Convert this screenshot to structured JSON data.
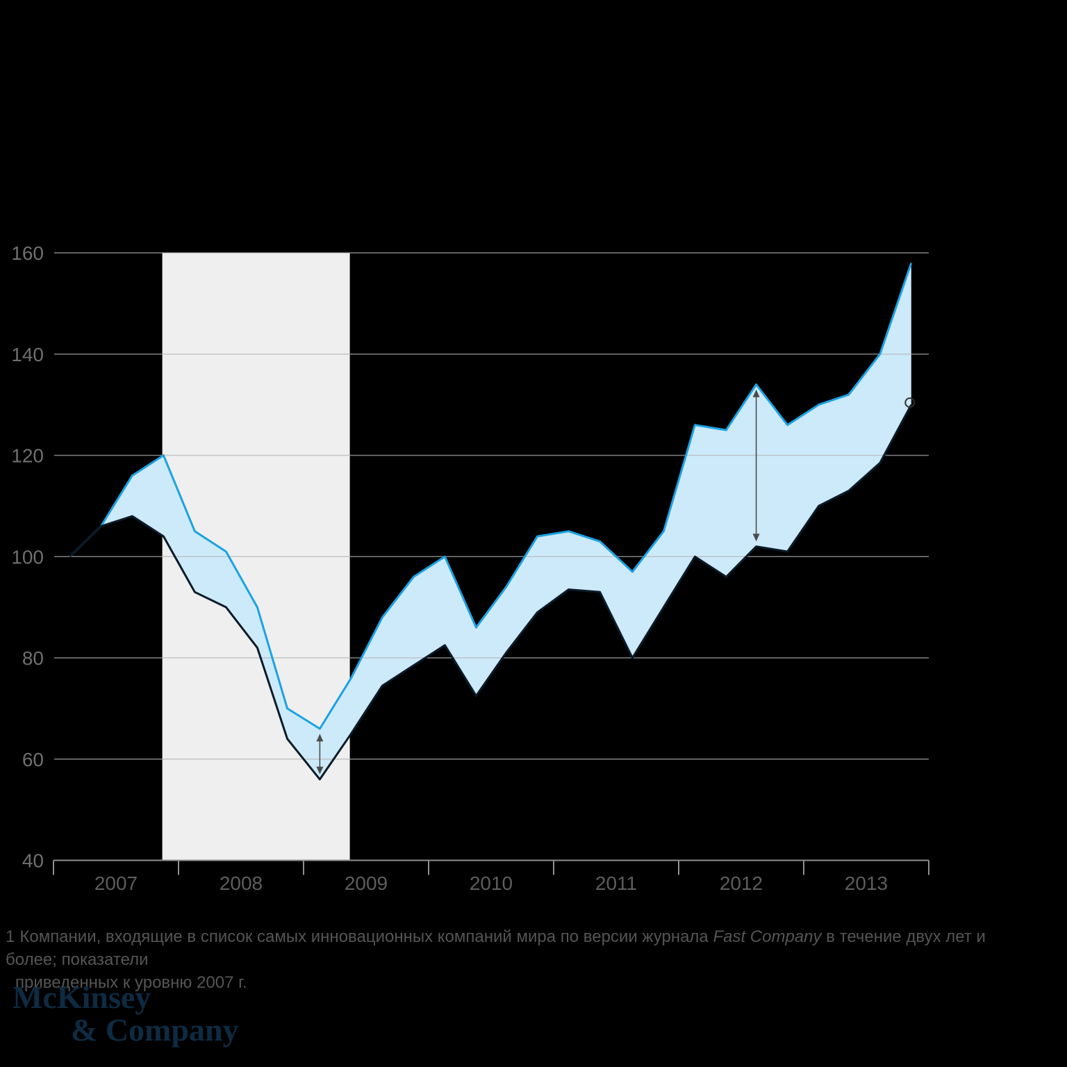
{
  "background_color": "#000000",
  "chart_data": {
    "type": "area",
    "title": "",
    "x_axis": {
      "range": [
        2007,
        2014
      ],
      "tick_years": [
        2007,
        2008,
        2009,
        2010,
        2011,
        2012,
        2013,
        2014
      ],
      "year_labels": [
        "2007",
        "2008",
        "2009",
        "2010",
        "2011",
        "2012",
        "2013"
      ],
      "grid": false
    },
    "y_axis": {
      "min": 40,
      "max": 160,
      "step": 20,
      "tick_labels": [
        "40",
        "60",
        "80",
        "100",
        "120",
        "140",
        "160"
      ],
      "grid": true
    },
    "colors": {
      "upper_line": "#1ba2e2",
      "lower_line": "#0b1b29",
      "fill_between": "#cdeafa",
      "recession_band": "#efefef",
      "gridline": "#b5b5b5",
      "axis": "#8f8f8f",
      "y_tick_text": "#6f6f6f",
      "x_tick_text": "#5d5d5d",
      "annotation": "#4c4c4c"
    },
    "recession_band": {
      "from_year": 2007.87,
      "to_year": 2009.37
    },
    "series": [
      {
        "name": "upper_line_blue",
        "points": [
          [
            2007.13,
            100
          ],
          [
            2007.38,
            106
          ],
          [
            2007.63,
            116
          ],
          [
            2007.88,
            120
          ],
          [
            2008.13,
            105
          ],
          [
            2008.38,
            101
          ],
          [
            2008.63,
            90
          ],
          [
            2008.87,
            70
          ],
          [
            2009.13,
            66
          ],
          [
            2009.38,
            76
          ],
          [
            2009.63,
            88
          ],
          [
            2009.88,
            96
          ],
          [
            2010.13,
            100
          ],
          [
            2010.38,
            86
          ],
          [
            2010.62,
            94
          ],
          [
            2010.87,
            104
          ],
          [
            2011.12,
            105
          ],
          [
            2011.37,
            103
          ],
          [
            2011.63,
            97
          ],
          [
            2011.88,
            105
          ],
          [
            2012.13,
            126
          ],
          [
            2012.38,
            125
          ],
          [
            2012.62,
            134
          ],
          [
            2012.87,
            126
          ],
          [
            2013.12,
            130
          ],
          [
            2013.36,
            132
          ],
          [
            2013.61,
            140
          ],
          [
            2013.86,
            158
          ]
        ]
      },
      {
        "name": "lower_line_dark",
        "end_marker": "open-circle",
        "points": [
          [
            2007.13,
            100
          ],
          [
            2007.38,
            106
          ],
          [
            2007.63,
            108
          ],
          [
            2007.88,
            104
          ],
          [
            2008.13,
            93
          ],
          [
            2008.38,
            90
          ],
          [
            2008.63,
            82
          ],
          [
            2008.87,
            64
          ],
          [
            2009.13,
            56
          ],
          [
            2009.38,
            65
          ],
          [
            2009.63,
            74.5
          ],
          [
            2009.88,
            78.5
          ],
          [
            2010.13,
            82.5
          ],
          [
            2010.38,
            72.5
          ],
          [
            2010.62,
            81
          ],
          [
            2010.87,
            89
          ],
          [
            2011.12,
            93.5
          ],
          [
            2011.37,
            93
          ],
          [
            2011.63,
            80
          ],
          [
            2011.88,
            90
          ],
          [
            2012.13,
            100
          ],
          [
            2012.38,
            96
          ],
          [
            2012.62,
            102
          ],
          [
            2012.87,
            101
          ],
          [
            2013.12,
            110
          ],
          [
            2013.36,
            113
          ],
          [
            2013.61,
            118.5
          ],
          [
            2013.86,
            130
          ]
        ]
      }
    ],
    "annotations": {
      "gap_arrows": [
        {
          "x_year": 2009.13,
          "top_value": 65,
          "bottom_value": 57
        },
        {
          "x_year": 2012.62,
          "top_value": 133,
          "bottom_value": 103
        }
      ],
      "end_circle": {
        "x_year": 2013.86,
        "value": 130
      }
    }
  },
  "footnote": {
    "marker": "1",
    "line1_pre": "Компании, входящие в список самых инновационных компаний мира по версии журнала ",
    "line1_italic": "Fast Company",
    "line1_post": " в течение двух лет и более; показатели",
    "line2": "приведенных к уровню 2007 г."
  },
  "logo": {
    "line1": "McKinsey",
    "line2": "& Company"
  }
}
